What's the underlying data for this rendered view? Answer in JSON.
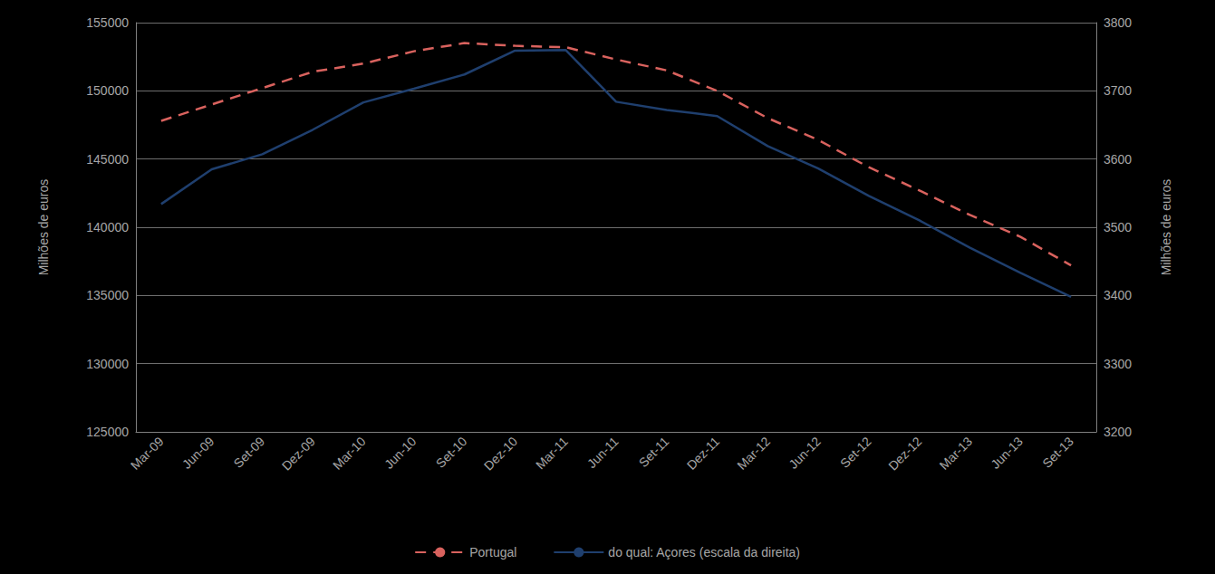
{
  "chart_data": {
    "type": "line",
    "y_label": "Milhões de euros",
    "y2_label": "Milhões de euros",
    "categories": [
      "Mar-09",
      "Jun-09",
      "Set-09",
      "Dez-09",
      "Mar-10",
      "Jun-10",
      "Set-10",
      "Dez-10",
      "Mar-11",
      "Jun-11",
      "Set-11",
      "Dez-11",
      "Mar-12",
      "Jun-12",
      "Set-12",
      "Dez-12",
      "Mar-13",
      "Jun-13",
      "Set-13"
    ],
    "series": [
      {
        "name": "Portugal",
        "color": "#d9625e",
        "line_style": "dashed",
        "values": [
          147800,
          149000,
          150200,
          151400,
          152000,
          152900,
          153500,
          153300,
          153200,
          152300,
          151500,
          150000,
          148000,
          146400,
          144400,
          142700,
          140900,
          139300,
          137200
        ]
      },
      {
        "name": "do qual: Açores (escala da direita)",
        "color": "#1f3f6e",
        "line_style": "solid",
        "axis": "y2",
        "values": [
          3534,
          3585,
          3607,
          3643,
          3683,
          3703,
          3724,
          3759,
          3760,
          3684,
          3672,
          3663,
          3619,
          3586,
          3546,
          3510,
          3470,
          3433,
          3398
        ]
      }
    ],
    "ylim": [
      125000,
      155000
    ],
    "yticks": [
      125000,
      130000,
      135000,
      140000,
      145000,
      150000,
      155000
    ],
    "y2lim": [
      3200,
      3800
    ],
    "y2ticks": [
      3200,
      3300,
      3400,
      3500,
      3600,
      3700,
      3800
    ],
    "grid": true,
    "legend": "bottom"
  }
}
